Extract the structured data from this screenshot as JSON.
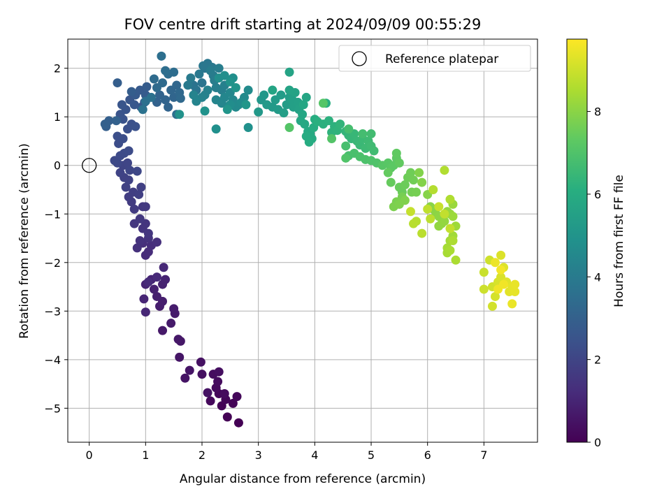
{
  "chart_data": {
    "type": "scatter",
    "title": "FOV centre drift starting at 2024/09/09 00:55:29",
    "xlabel": "Angular distance from reference (arcmin)",
    "ylabel": "Rotation from reference (arcmin)",
    "xlim": [
      -0.38,
      7.95
    ],
    "ylim": [
      -5.7,
      2.6
    ],
    "xticks": [
      "0",
      "1",
      "2",
      "3",
      "4",
      "5",
      "6",
      "7"
    ],
    "yticks": [
      "−5",
      "−4",
      "−3",
      "−2",
      "−1",
      "0",
      "1",
      "2"
    ],
    "grid": true,
    "legend": {
      "label": "Reference platepar",
      "location": "top-right"
    },
    "reference_point": {
      "x": 0.0,
      "y": 0.0
    },
    "colorbar": {
      "label": "Hours from first FF file",
      "range": [
        0,
        9.75
      ],
      "ticks": [
        "0",
        "2",
        "4",
        "6",
        "8"
      ],
      "colormap": "viridis"
    },
    "series": [
      {
        "color_by": "hours",
        "points": [
          [
            2.65,
            -5.3
          ],
          [
            2.45,
            -5.18
          ],
          [
            2.35,
            -4.95
          ],
          [
            2.55,
            -4.9
          ],
          [
            2.42,
            -4.82
          ],
          [
            2.3,
            -4.7
          ],
          [
            2.62,
            -4.76
          ],
          [
            2.15,
            -4.85
          ],
          [
            2.25,
            -4.58
          ],
          [
            2.4,
            -4.7
          ],
          [
            2.28,
            -4.45
          ],
          [
            2.2,
            -4.3
          ],
          [
            2.3,
            -4.25
          ],
          [
            2.0,
            -4.3
          ],
          [
            1.98,
            -4.05
          ],
          [
            2.1,
            -4.68
          ],
          [
            1.7,
            -4.38
          ],
          [
            1.78,
            -4.22
          ],
          [
            1.6,
            -3.95
          ],
          [
            1.62,
            -3.62
          ],
          [
            1.58,
            -3.58
          ],
          [
            1.3,
            -3.4
          ],
          [
            1.45,
            -3.25
          ],
          [
            1.52,
            -3.05
          ],
          [
            1.5,
            -2.95
          ],
          [
            1.25,
            -2.9
          ],
          [
            1.3,
            -2.8
          ],
          [
            1.2,
            -2.7
          ],
          [
            1.15,
            -2.55
          ],
          [
            1.3,
            -2.45
          ],
          [
            1.35,
            -2.35
          ],
          [
            1.1,
            -2.35
          ],
          [
            1.0,
            -2.45
          ],
          [
            0.97,
            -2.75
          ],
          [
            1.0,
            -3.02
          ],
          [
            1.32,
            -2.1
          ],
          [
            1.2,
            -2.3
          ],
          [
            1.05,
            -2.4
          ],
          [
            1.0,
            -1.85
          ],
          [
            1.05,
            -1.78
          ],
          [
            1.1,
            -1.65
          ],
          [
            0.95,
            -1.6
          ],
          [
            1.2,
            -1.58
          ],
          [
            0.85,
            -1.7
          ],
          [
            0.9,
            -1.55
          ],
          [
            1.05,
            -1.5
          ],
          [
            0.95,
            -1.3
          ],
          [
            1.0,
            -1.2
          ],
          [
            1.05,
            -1.4
          ],
          [
            0.8,
            -1.2
          ],
          [
            0.9,
            -1.1
          ],
          [
            0.95,
            -0.85
          ],
          [
            1.0,
            -0.85
          ],
          [
            0.8,
            -0.9
          ],
          [
            0.75,
            -0.75
          ],
          [
            0.7,
            -0.65
          ],
          [
            0.78,
            -0.55
          ],
          [
            0.88,
            -0.6
          ],
          [
            0.92,
            -0.45
          ],
          [
            0.65,
            -0.45
          ],
          [
            0.7,
            -0.3
          ],
          [
            0.62,
            -0.25
          ],
          [
            0.55,
            -0.15
          ],
          [
            0.6,
            0.0
          ],
          [
            0.68,
            0.05
          ],
          [
            0.72,
            -0.1
          ],
          [
            0.85,
            -0.12
          ],
          [
            0.5,
            0.05
          ],
          [
            0.45,
            0.1
          ],
          [
            0.55,
            0.2
          ],
          [
            0.62,
            0.25
          ],
          [
            0.7,
            0.3
          ],
          [
            0.52,
            0.45
          ],
          [
            0.6,
            0.55
          ],
          [
            0.5,
            0.6
          ],
          [
            0.68,
            0.75
          ],
          [
            0.75,
            0.85
          ],
          [
            0.82,
            0.8
          ],
          [
            0.6,
            0.95
          ],
          [
            0.55,
            1.05
          ],
          [
            0.65,
            1.15
          ],
          [
            0.58,
            1.25
          ],
          [
            0.72,
            1.35
          ],
          [
            0.8,
            1.25
          ],
          [
            0.92,
            1.2
          ],
          [
            0.98,
            1.3
          ],
          [
            0.82,
            1.45
          ],
          [
            0.9,
            1.55
          ],
          [
            1.0,
            1.45
          ],
          [
            1.02,
            1.62
          ],
          [
            0.75,
            1.52
          ],
          [
            0.5,
            1.7
          ],
          [
            0.3,
            0.8
          ],
          [
            0.35,
            0.92
          ],
          [
            0.28,
            0.85
          ],
          [
            0.48,
            0.92
          ],
          [
            1.2,
            1.3
          ],
          [
            1.25,
            1.45
          ],
          [
            1.35,
            1.35
          ],
          [
            1.4,
            1.2
          ],
          [
            1.5,
            1.4
          ],
          [
            1.45,
            1.55
          ],
          [
            1.55,
            1.65
          ],
          [
            1.6,
            1.5
          ],
          [
            1.62,
            1.38
          ],
          [
            1.3,
            1.7
          ],
          [
            1.2,
            1.6
          ],
          [
            1.15,
            1.78
          ],
          [
            1.4,
            1.88
          ],
          [
            1.5,
            1.92
          ],
          [
            1.35,
            1.95
          ],
          [
            1.28,
            2.25
          ],
          [
            1.55,
            1.05
          ],
          [
            1.0,
            1.32
          ],
          [
            1.1,
            1.4
          ],
          [
            0.95,
            1.15
          ],
          [
            1.85,
            1.65
          ],
          [
            1.9,
            1.55
          ],
          [
            2.0,
            1.7
          ],
          [
            2.05,
            2.0
          ],
          [
            2.1,
            2.1
          ],
          [
            2.02,
            2.05
          ],
          [
            2.18,
            2.02
          ],
          [
            1.95,
            1.88
          ],
          [
            1.75,
            1.65
          ],
          [
            1.8,
            1.8
          ],
          [
            2.2,
            1.85
          ],
          [
            2.15,
            1.95
          ],
          [
            2.3,
            2.0
          ],
          [
            2.22,
            1.75
          ],
          [
            2.25,
            1.6
          ],
          [
            2.35,
            1.55
          ],
          [
            2.4,
            1.65
          ],
          [
            2.1,
            1.55
          ],
          [
            2.05,
            1.45
          ],
          [
            2.0,
            1.4
          ],
          [
            1.85,
            1.45
          ],
          [
            1.9,
            1.32
          ],
          [
            2.25,
            1.35
          ],
          [
            2.35,
            1.28
          ],
          [
            2.4,
            1.4
          ],
          [
            2.5,
            1.5
          ],
          [
            2.55,
            1.35
          ],
          [
            2.6,
            1.2
          ],
          [
            2.65,
            1.25
          ],
          [
            2.75,
            1.4
          ],
          [
            2.82,
            1.55
          ],
          [
            2.7,
            1.3
          ],
          [
            2.5,
            1.25
          ],
          [
            2.3,
            1.8
          ],
          [
            2.4,
            1.85
          ],
          [
            2.55,
            1.8
          ],
          [
            2.25,
            0.75
          ],
          [
            2.82,
            0.78
          ],
          [
            2.05,
            1.12
          ],
          [
            1.6,
            1.05
          ],
          [
            2.5,
            1.72
          ],
          [
            2.6,
            1.6
          ],
          [
            2.45,
            1.15
          ],
          [
            2.78,
            1.25
          ],
          [
            3.05,
            1.35
          ],
          [
            3.1,
            1.45
          ],
          [
            3.0,
            1.1
          ],
          [
            3.15,
            1.25
          ],
          [
            3.25,
            1.2
          ],
          [
            3.35,
            1.15
          ],
          [
            3.3,
            1.35
          ],
          [
            3.4,
            1.45
          ],
          [
            3.5,
            1.25
          ],
          [
            3.55,
            1.4
          ],
          [
            3.45,
            1.08
          ],
          [
            3.6,
            1.35
          ],
          [
            3.62,
            1.2
          ],
          [
            3.7,
            1.3
          ],
          [
            3.72,
            1.15
          ],
          [
            3.65,
            1.5
          ],
          [
            3.55,
            1.92
          ],
          [
            3.55,
            1.55
          ],
          [
            3.25,
            1.55
          ],
          [
            3.85,
            1.4
          ],
          [
            3.8,
            1.25
          ],
          [
            3.78,
            1.05
          ],
          [
            3.75,
            0.92
          ],
          [
            3.82,
            0.85
          ],
          [
            3.88,
            0.7
          ],
          [
            3.92,
            0.65
          ],
          [
            3.95,
            0.55
          ],
          [
            3.85,
            0.6
          ],
          [
            3.9,
            0.48
          ],
          [
            3.98,
            0.78
          ],
          [
            4.0,
            0.95
          ],
          [
            4.2,
            1.28
          ],
          [
            4.05,
            0.9
          ],
          [
            4.15,
            0.85
          ],
          [
            4.25,
            0.92
          ],
          [
            4.35,
            0.8
          ],
          [
            4.3,
            0.68
          ],
          [
            4.4,
            0.72
          ],
          [
            4.45,
            0.85
          ],
          [
            4.55,
            0.7
          ],
          [
            4.6,
            0.62
          ],
          [
            4.65,
            0.55
          ],
          [
            4.7,
            0.65
          ],
          [
            4.75,
            0.5
          ],
          [
            4.8,
            0.42
          ],
          [
            4.85,
            0.55
          ],
          [
            4.9,
            0.35
          ],
          [
            4.95,
            0.5
          ],
          [
            5.0,
            0.4
          ],
          [
            5.05,
            0.3
          ],
          [
            5.0,
            0.65
          ],
          [
            4.85,
            0.65
          ],
          [
            4.6,
            0.75
          ],
          [
            4.55,
            0.4
          ],
          [
            4.6,
            0.2
          ],
          [
            4.7,
            0.25
          ],
          [
            4.8,
            0.18
          ],
          [
            4.9,
            0.12
          ],
          [
            5.0,
            0.1
          ],
          [
            5.1,
            0.05
          ],
          [
            4.55,
            0.15
          ],
          [
            4.3,
            0.55
          ],
          [
            3.55,
            0.78
          ],
          [
            4.15,
            1.28
          ],
          [
            5.2,
            0.0
          ],
          [
            5.3,
            0.05
          ],
          [
            5.35,
            -0.05
          ],
          [
            5.4,
            0.0
          ],
          [
            5.45,
            0.15
          ],
          [
            5.45,
            0.25
          ],
          [
            5.5,
            0.05
          ],
          [
            5.3,
            -0.15
          ],
          [
            5.35,
            -0.35
          ],
          [
            5.5,
            -0.45
          ],
          [
            5.55,
            -0.55
          ],
          [
            5.6,
            -0.4
          ],
          [
            5.65,
            -0.25
          ],
          [
            5.7,
            -0.15
          ],
          [
            5.75,
            -0.3
          ],
          [
            5.72,
            -0.55
          ],
          [
            5.8,
            -0.55
          ],
          [
            5.55,
            -0.65
          ],
          [
            5.45,
            -0.75
          ],
          [
            5.4,
            -0.85
          ],
          [
            5.5,
            -0.8
          ],
          [
            5.6,
            -0.72
          ],
          [
            5.85,
            -0.15
          ],
          [
            5.9,
            -0.35
          ],
          [
            6.0,
            -0.6
          ],
          [
            6.05,
            -0.85
          ],
          [
            6.1,
            -0.9
          ],
          [
            6.15,
            -1.0
          ],
          [
            6.2,
            -1.05
          ],
          [
            6.25,
            -1.2
          ],
          [
            6.2,
            -1.25
          ],
          [
            6.3,
            -1.15
          ],
          [
            6.35,
            -0.95
          ],
          [
            6.4,
            -1.0
          ],
          [
            6.45,
            -0.8
          ],
          [
            6.45,
            -1.05
          ],
          [
            6.5,
            -1.25
          ],
          [
            6.45,
            -1.45
          ],
          [
            6.4,
            -1.55
          ],
          [
            6.35,
            -1.7
          ],
          [
            6.35,
            -1.8
          ],
          [
            6.4,
            -1.75
          ],
          [
            6.5,
            -1.95
          ],
          [
            6.45,
            -1.55
          ],
          [
            6.4,
            -0.7
          ],
          [
            6.3,
            -0.1
          ],
          [
            6.1,
            -0.5
          ],
          [
            5.8,
            -1.15
          ],
          [
            5.75,
            -1.2
          ],
          [
            5.9,
            -1.4
          ],
          [
            6.05,
            -1.1
          ],
          [
            6.0,
            -0.9
          ],
          [
            6.3,
            -1.0
          ],
          [
            6.4,
            -1.3
          ],
          [
            5.7,
            -0.95
          ],
          [
            6.2,
            -0.85
          ],
          [
            7.0,
            -2.2
          ],
          [
            7.0,
            -2.55
          ],
          [
            7.1,
            -1.95
          ],
          [
            7.15,
            -2.5
          ],
          [
            7.15,
            -2.9
          ],
          [
            7.2,
            -2.7
          ],
          [
            7.25,
            -2.4
          ],
          [
            7.3,
            -2.3
          ],
          [
            7.3,
            -1.85
          ],
          [
            7.35,
            -2.1
          ],
          [
            7.4,
            -2.4
          ],
          [
            7.45,
            -2.6
          ],
          [
            7.5,
            -2.5
          ],
          [
            7.55,
            -2.6
          ],
          [
            7.55,
            -2.45
          ],
          [
            7.5,
            -2.85
          ],
          [
            7.2,
            -2.0
          ],
          [
            7.25,
            -2.55
          ],
          [
            7.35,
            -2.45
          ],
          [
            7.3,
            -2.15
          ]
        ]
      }
    ]
  }
}
